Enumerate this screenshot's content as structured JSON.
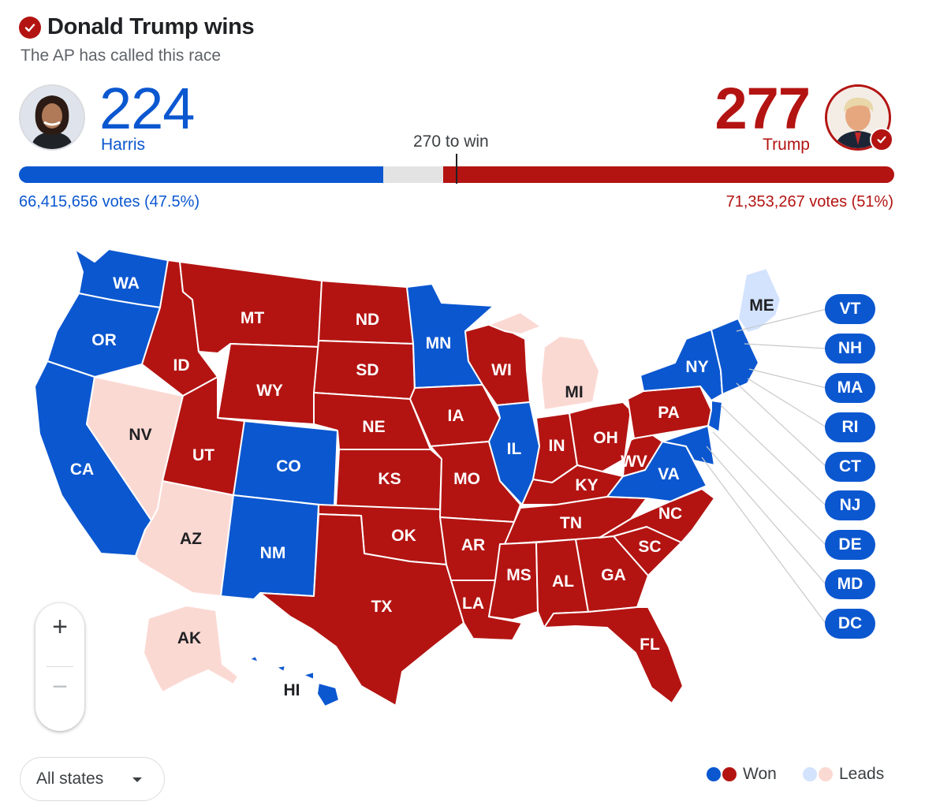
{
  "header": {
    "title": "Donald Trump wins",
    "subtitle": "The AP has called this race"
  },
  "threshold_label": "270 to win",
  "harris": {
    "name": "Harris",
    "electoral_votes": "224",
    "votes_label": "66,415,656 votes (47.5%)",
    "share_of_538": 0.416
  },
  "trump": {
    "name": "Trump",
    "electoral_votes": "277",
    "votes_label": "71,353,267 votes (51%)",
    "share_of_538": 0.515
  },
  "colors": {
    "dem_won": "#0b57d0",
    "rep_won": "#b31412",
    "dem_leads": "#d3e3fd",
    "rep_leads": "#fbd9d3"
  },
  "states": {
    "WA": "WA",
    "OR": "OR",
    "CA": "CA",
    "NV": "NV",
    "ID": "ID",
    "MT": "MT",
    "WY": "WY",
    "UT": "UT",
    "AZ": "AZ",
    "CO": "CO",
    "NM": "NM",
    "ND": "ND",
    "SD": "SD",
    "NE": "NE",
    "KS": "KS",
    "OK": "OK",
    "TX": "TX",
    "MN": "MN",
    "IA": "IA",
    "MO": "MO",
    "AR": "AR",
    "LA": "LA",
    "WI": "WI",
    "IL": "IL",
    "MI": "MI",
    "IN": "IN",
    "OH": "OH",
    "KY": "KY",
    "TN": "TN",
    "MS": "MS",
    "AL": "AL",
    "GA": "GA",
    "FL": "FL",
    "SC": "SC",
    "NC": "NC",
    "VA": "VA",
    "WV": "WV",
    "PA": "PA",
    "NY": "NY",
    "ME": "ME",
    "AK": "AK",
    "HI": "HI"
  },
  "small_states": [
    "VT",
    "NH",
    "MA",
    "RI",
    "CT",
    "NJ",
    "DE",
    "MD",
    "DC"
  ],
  "zoom": {
    "in": "+",
    "out": "−"
  },
  "filter": {
    "selected": "All states"
  },
  "legend": {
    "won": "Won",
    "leads": "Leads"
  }
}
